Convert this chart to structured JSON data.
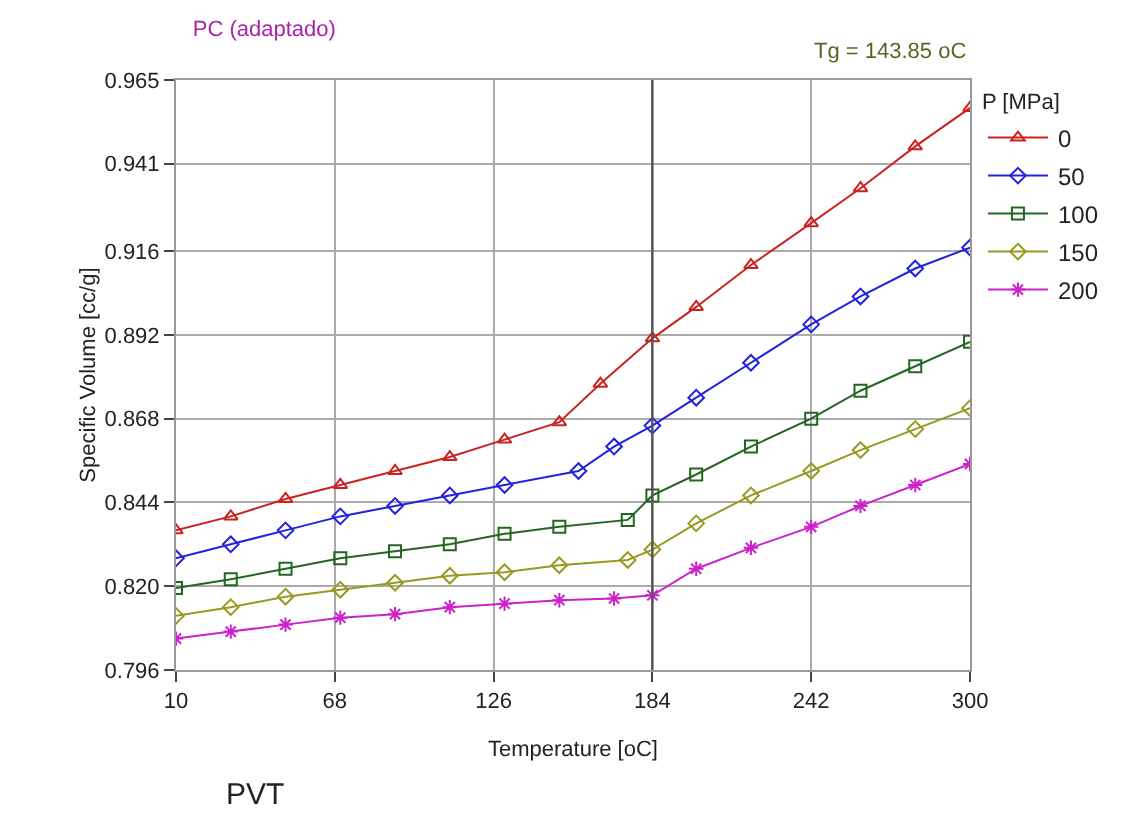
{
  "chart_data": {
    "type": "line",
    "title": "PC (adaptado)",
    "annotations": [
      "Tg = 143.85 oC",
      "PVT"
    ],
    "xlabel": "Temperature [oC]",
    "ylabel": "Specific Volume [cc/g]",
    "legend_title": "P [MPa]",
    "legend": "right",
    "grid": true,
    "xlim": [
      10,
      300
    ],
    "xticks": [
      10,
      68,
      126,
      184,
      242,
      300
    ],
    "ylim": [
      0.796,
      0.965
    ],
    "yticks": [
      {
        "value": 0.796,
        "label": "0.796"
      },
      {
        "value": 0.82,
        "label": "0.820"
      },
      {
        "value": 0.844,
        "label": "0.844"
      },
      {
        "value": 0.868,
        "label": "0.868"
      },
      {
        "value": 0.892,
        "label": "0.892"
      },
      {
        "value": 0.916,
        "label": "0.916"
      },
      {
        "value": 0.941,
        "label": "0.941"
      },
      {
        "value": 0.965,
        "label": "0.965"
      }
    ],
    "ref_lines": [
      {
        "axis": "x",
        "value": 184,
        "color": "#555555"
      }
    ],
    "series": [
      {
        "name": "0",
        "color": "#cc2222",
        "marker": "triangle",
        "x": [
          10,
          30,
          50,
          70,
          90,
          110,
          130,
          150,
          165,
          184,
          200,
          220,
          242,
          260,
          280,
          300
        ],
        "values": [
          0.836,
          0.84,
          0.845,
          0.849,
          0.853,
          0.857,
          0.862,
          0.867,
          0.878,
          0.891,
          0.9,
          0.912,
          0.924,
          0.934,
          0.946,
          0.957
        ]
      },
      {
        "name": "50",
        "color": "#2222dd",
        "marker": "diamond",
        "x": [
          10,
          30,
          50,
          70,
          90,
          110,
          130,
          157,
          170,
          184,
          200,
          220,
          242,
          260,
          280,
          300
        ],
        "values": [
          0.828,
          0.832,
          0.836,
          0.84,
          0.843,
          0.846,
          0.849,
          0.853,
          0.86,
          0.866,
          0.874,
          0.884,
          0.895,
          0.903,
          0.911,
          0.917
        ]
      },
      {
        "name": "100",
        "color": "#226622",
        "marker": "square",
        "x": [
          10,
          30,
          50,
          70,
          90,
          110,
          130,
          150,
          175,
          184,
          200,
          220,
          242,
          260,
          280,
          300
        ],
        "values": [
          0.8195,
          0.822,
          0.825,
          0.828,
          0.83,
          0.832,
          0.835,
          0.837,
          0.839,
          0.846,
          0.852,
          0.86,
          0.868,
          0.876,
          0.883,
          0.89
        ]
      },
      {
        "name": "150",
        "color": "#999922",
        "marker": "diamond",
        "x": [
          10,
          30,
          50,
          70,
          90,
          110,
          130,
          150,
          175,
          184,
          200,
          220,
          242,
          260,
          280,
          300
        ],
        "values": [
          0.8115,
          0.814,
          0.817,
          0.819,
          0.821,
          0.823,
          0.824,
          0.826,
          0.8275,
          0.8305,
          0.838,
          0.846,
          0.853,
          0.859,
          0.865,
          0.871
        ]
      },
      {
        "name": "200",
        "color": "#cc22cc",
        "marker": "cross",
        "x": [
          10,
          30,
          50,
          70,
          90,
          110,
          130,
          150,
          170,
          184,
          200,
          220,
          242,
          260,
          280,
          300
        ],
        "values": [
          0.805,
          0.807,
          0.809,
          0.811,
          0.812,
          0.814,
          0.815,
          0.816,
          0.8165,
          0.8174,
          0.825,
          0.831,
          0.837,
          0.843,
          0.849,
          0.855
        ]
      }
    ]
  }
}
